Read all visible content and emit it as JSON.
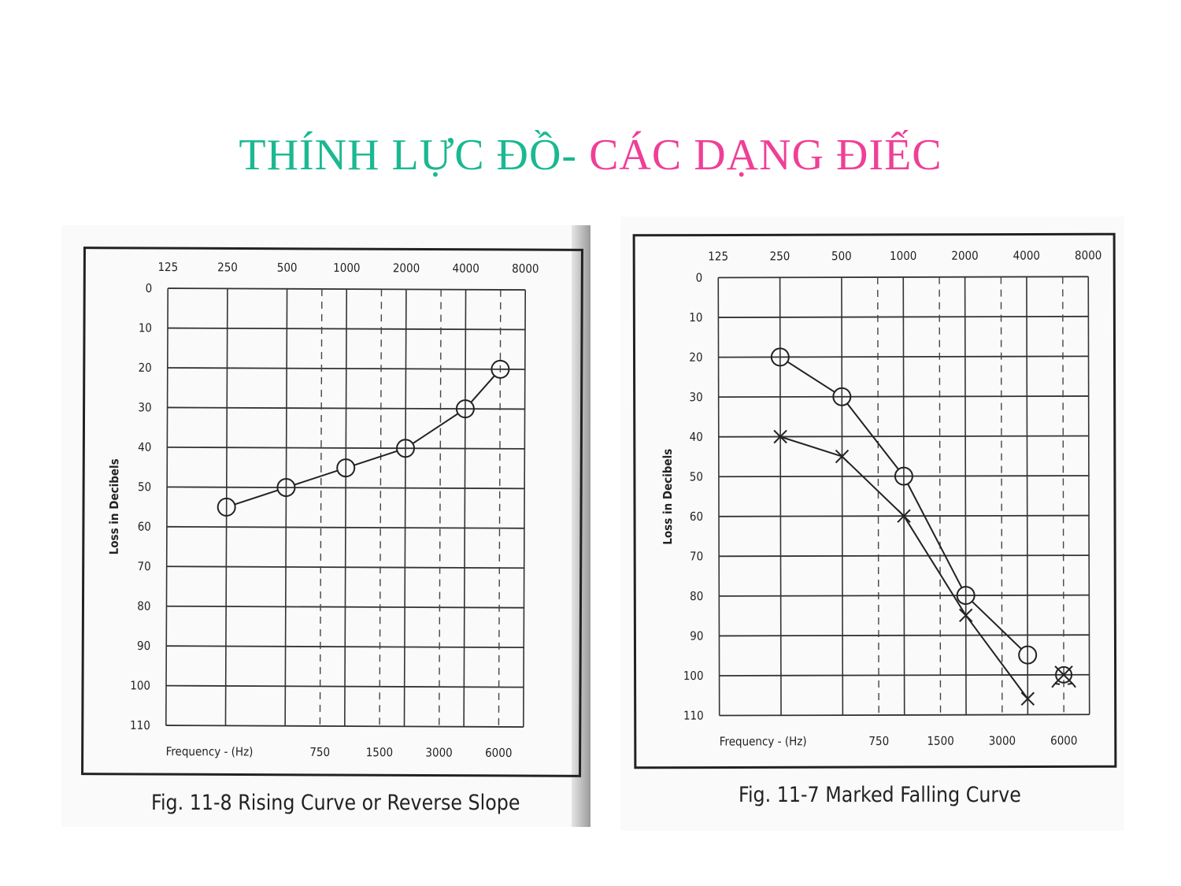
{
  "slide": {
    "title_part1": "THÍNH LỰC ĐỒ-",
    "title_part2": "CÁC DẠNG ĐIẾC",
    "colors": {
      "title_part1": "#1bb891",
      "title_part2": "#ef3f97"
    }
  },
  "chart_data": [
    {
      "type": "line",
      "caption": "Fig. 11-8 Rising Curve or Reverse Slope",
      "top_ticks": [
        "125",
        "250",
        "500",
        "1000",
        "2000",
        "4000",
        "8000"
      ],
      "bottom_ticks": [
        "750",
        "1500",
        "3000",
        "6000"
      ],
      "xlabel": "Frequency - (Hz)",
      "ylabel": "Loss in Decibels",
      "ylim": [
        0,
        110
      ],
      "y_ticks": [
        0,
        10,
        20,
        30,
        40,
        50,
        60,
        70,
        80,
        90,
        100,
        110
      ],
      "y_inverted": true,
      "grid": true,
      "series": [
        {
          "marker": "circle",
          "x": [
            "250",
            "500",
            "1000",
            "2000",
            "4000",
            "6000"
          ],
          "y": [
            55,
            50,
            45,
            40,
            30,
            20
          ]
        }
      ]
    },
    {
      "type": "line",
      "caption": "Fig. 11-7 Marked Falling Curve",
      "top_ticks": [
        "125",
        "250",
        "500",
        "1000",
        "2000",
        "4000",
        "8000"
      ],
      "bottom_ticks": [
        "750",
        "1500",
        "3000",
        "6000"
      ],
      "xlabel": "Frequency - (Hz)",
      "ylabel": "Loss in Decibels",
      "ylim": [
        0,
        110
      ],
      "y_ticks": [
        0,
        10,
        20,
        30,
        40,
        50,
        60,
        70,
        80,
        90,
        100,
        110
      ],
      "y_inverted": true,
      "grid": true,
      "series": [
        {
          "marker": "circle",
          "x": [
            "250",
            "500",
            "1000",
            "2000",
            "4000"
          ],
          "y": [
            20,
            30,
            50,
            80,
            95
          ]
        },
        {
          "marker": "cross",
          "x": [
            "250",
            "500",
            "1000",
            "2000",
            "4000"
          ],
          "y": [
            40,
            45,
            60,
            85,
            106
          ]
        },
        {
          "marker": "circle-cross-no-response",
          "x": [
            "6000"
          ],
          "y": [
            100
          ]
        }
      ]
    }
  ]
}
